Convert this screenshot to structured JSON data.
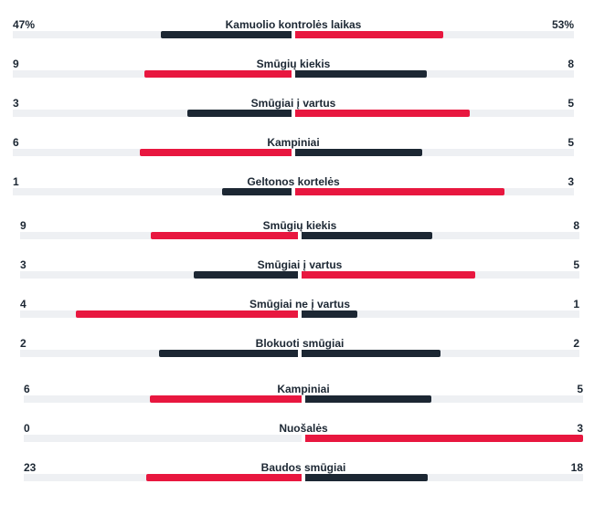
{
  "colors": {
    "leader": "#e8173f",
    "other": "#1c2733",
    "track": "#eef0f3"
  },
  "stats": [
    {
      "label": "Kamuolio kontrolės laikas",
      "home": "47%",
      "away": "53%",
      "home_value": 47,
      "away_value": 53
    },
    {
      "label": "Smūgių kiekis",
      "home": "9",
      "away": "8",
      "home_value": 9,
      "away_value": 8
    },
    {
      "label": "Smūgiai į vartus",
      "home": "3",
      "away": "5",
      "home_value": 3,
      "away_value": 5
    },
    {
      "label": "Kampiniai",
      "home": "6",
      "away": "5",
      "home_value": 6,
      "away_value": 5
    },
    {
      "label": "Geltonos kortelės",
      "home": "1",
      "away": "3",
      "home_value": 1,
      "away_value": 3
    },
    {
      "label": "Smūgių kiekis",
      "home": "9",
      "away": "8",
      "home_value": 9,
      "away_value": 8
    },
    {
      "label": "Smūgiai į vartus",
      "home": "3",
      "away": "5",
      "home_value": 3,
      "away_value": 5
    },
    {
      "label": "Smūgiai ne į vartus",
      "home": "4",
      "away": "1",
      "home_value": 4,
      "away_value": 1
    },
    {
      "label": "Blokuoti smūgiai",
      "home": "2",
      "away": "2",
      "home_value": 2,
      "away_value": 2
    },
    {
      "label": "Kampiniai",
      "home": "6",
      "away": "5",
      "home_value": 6,
      "away_value": 5
    },
    {
      "label": "Nuošalės",
      "home": "0",
      "away": "3",
      "home_value": 0,
      "away_value": 3
    },
    {
      "label": "Baudos smūgiai",
      "home": "23",
      "away": "18",
      "home_value": 23,
      "away_value": 18
    }
  ]
}
